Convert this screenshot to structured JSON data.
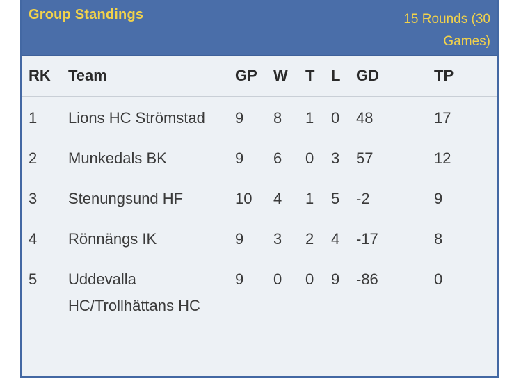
{
  "header": {
    "title": "Group Standings",
    "meta": "15 Rounds (30 Games)"
  },
  "columns": {
    "rk": "RK",
    "team": "Team",
    "gp": "GP",
    "w": "W",
    "t": "T",
    "l": "L",
    "gd": "GD",
    "tp": "TP"
  },
  "rows": [
    {
      "rk": "1",
      "team": "Lions HC Strömstad",
      "gp": "9",
      "w": "8",
      "t": "1",
      "l": "0",
      "gd": "48",
      "tp": "17"
    },
    {
      "rk": "2",
      "team": "Munkedals BK",
      "gp": "9",
      "w": "6",
      "t": "0",
      "l": "3",
      "gd": "57",
      "tp": "12"
    },
    {
      "rk": "3",
      "team": "Stenungsund HF",
      "gp": "10",
      "w": "4",
      "t": "1",
      "l": "5",
      "gd": "-2",
      "tp": "9"
    },
    {
      "rk": "4",
      "team": "Rönnängs IK",
      "gp": "9",
      "w": "3",
      "t": "2",
      "l": "4",
      "gd": "-17",
      "tp": "8"
    },
    {
      "rk": "5",
      "team": "Uddevalla HC/Trollhättans HC",
      "gp": "9",
      "w": "0",
      "t": "0",
      "l": "9",
      "gd": "-86",
      "tp": "0"
    }
  ],
  "colors": {
    "header_bg": "#4a6ea9",
    "header_text": "#f2d24b",
    "body_bg": "#edf1f5"
  }
}
